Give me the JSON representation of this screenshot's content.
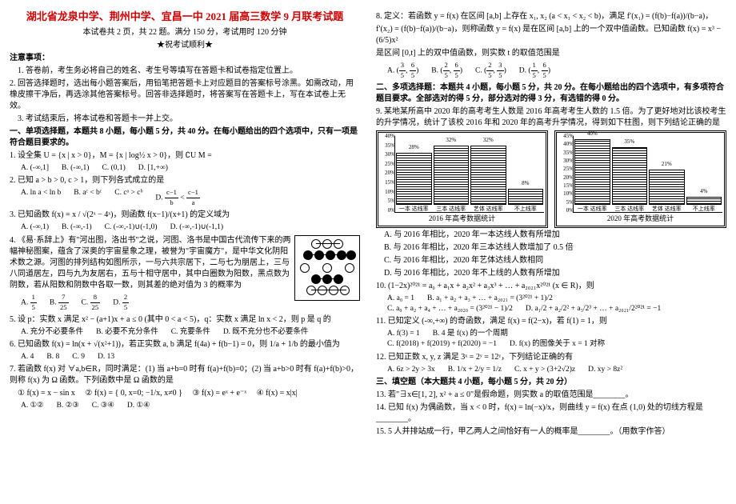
{
  "header": {
    "title": "湖北省龙泉中学、荆州中学、宜昌一中 2021 届高三数学 9 月联考试题",
    "subtitle": "本试卷共 2 页，共 22 题。满分 150 分，考试用时 120 分钟",
    "wish": "★祝考试顺利★"
  },
  "notes": {
    "head": "注意事项：",
    "n1": "1. 答卷前，考生务必将自己的姓名、考生号等填写在答题卡和试卷指定位置上。",
    "n2": "2. 回答选择题时，选出每小题答案后，用铅笔把答题卡上对应题目的答案标号涂黑。如需改动，用橡皮擦干净后，再选涂其他答案标号。回答非选择题时，将答案写在答题卡上，写在本试卷上无效。",
    "n3": "3. 考试结束后，将本试卷和答题卡一并上交。"
  },
  "sec1": {
    "head": "一、单项选择题，本题共 8 小题，每小题 5 分，共 40 分。在每小题给出的四个选项中，只有一项是符合题目要求的。"
  },
  "left": {
    "q1": "1. 设全集 U = {x | x > 0}，M = {x | log½ x > 0}，则 ∁U M =",
    "q1A": "A. (-∞,1]",
    "q1B": "B. (-∞,1)",
    "q1C": "C. (0,1)",
    "q1D": "D. [1,+∞)",
    "q2": "2. 已知 a > b > 0, c > 1，则下列各式成立的是",
    "q2A": "A. ln a < ln b",
    "q2B": "B. aᶜ < bᶜ",
    "q2C": "C. cᵃ > cᵇ",
    "q2D": "D. ",
    "q3": "3. 已知函数 f(x) = x / √(2ˣ − 4ˣ)，则函数 f(x−1)/(x+1) 的定义域为",
    "q3A": "A. (-∞,1)",
    "q3B": "B. (-∞,-1)",
    "q3C": "C. (-∞,-1)∪(-1,0)",
    "q3D": "D. (-∞,-1)∪(-1,1)",
    "q4": "4. 《易·系辞上》有\"河出图，洛出书\"之说，河图、洛书是中国古代流传下来的两幅神秘图案，蕴含了深奥的宇宙星象之理，被誉为\"宇宙魔方\"，是中华文化阴阳术数之源。河图的排列结构如图所示，一与六共宗居下，二与七为朋居上，三与八同道居左，四与九为友居右，五与十相守居中，其中白圈数为阳数，黑点数为阴数，若从阳数和阴数中各取一数，则其差的绝对值为 3 的概率为",
    "q4A": "A. 1/5",
    "q4B": "B. 7/25",
    "q4C": "C. 8/25",
    "q4D": "D. 2/5",
    "q5": "5. 设 p：实数 x 满足 x² − (a+1)x + a ≤ 0 (其中 0 < a < 5)，q：实数 x 满足 ln x < 2，则 p 是 q 的",
    "q5A": "A. 充分不必要条件",
    "q5B": "B. 必要不充分条件",
    "q5C": "C. 充要条件",
    "q5D": "D. 既不充分也不必要条件",
    "q6": "6. 已知函数 f(x) = ln(x + √(x²+1))，若正实数 a, b 满足 f(4a) + f(b−1) = 0，则 1/a + 1/b 的最小值为",
    "q6A": "A. 4",
    "q6B": "B. 8",
    "q6C": "C. 9",
    "q6D": "D. 13",
    "q7": "7. 若函数 f(x) 对 ∀a,b∈R，同时满足：(1) 当 a+b=0 时有 f(a)+f(b)=0；(2) 当 a+b>0 时有 f(a)+f(b)>0，则称 f(x) 为 Ω 函数。下列函数中是 Ω 函数的是",
    "q7_1": "① f(x) = x − sin x",
    "q7_2": "② f(x) = { 0, x=0; −1/x, x≠0 }",
    "q7_3": "③ f(x) = eˣ + e⁻ˣ",
    "q7_4": "④ f(x) = x|x|",
    "q7A": "A. ①②",
    "q7B": "B. ②③",
    "q7C": "C. ③④",
    "q7D": "D. ①④"
  },
  "right": {
    "q8": "8. 定义：若函数 y = f(x) 在区间 [a,b] 上存在 x₁, x₂ (a < x₁ < x₂ < b)，满足 f′(x₁) = (f(b)−f(a))/(b−a)，",
    "q8b": "f′(x₂) = (f(b)−f(a))/(b−a)，则称函数 y = f(x) 是在区间 [a,b] 上的一个双中值函数。已知函数 f(x) = x³ − (6/5)x²",
    "q8c": "是区间 [0,t] 上的双中值函数，则实数 t 的取值范围是",
    "q8A": "A. (3/5, 6/5)",
    "q8B": "B. (2/5, 6/5)",
    "q8C": "C. (2/5, 3/5)",
    "q8D": "D. (1/5, 6/5)",
    "sec2": "二、多项选择题：本题共 4 小题，每小题 5 分，共 20 分。在每小题给出的四个选项中，有多项符合题目要求。全部选对的得 5 分，部分选对的得 3 分，有选错的得 0 分。",
    "q9": "9. 某地某所高中 2020 年的高考考生人数是 2016 年高考考生人数的 1.5 倍。为了更好地对比该校考生的升学情况，统计了该校 2016 年和 2020 年的高考升学情况，得到如下柱图，则下列结论正确的是",
    "chart2016": {
      "title": "2016 年高考数据统计",
      "ylim": 40,
      "ystep": 5,
      "bars": [
        {
          "label": "一本\n达线率",
          "value": 28
        },
        {
          "label": "三本\n达线率",
          "value": 32
        },
        {
          "label": "艺体\n达线率",
          "value": 32
        },
        {
          "label": "不上线率",
          "value": 8
        }
      ]
    },
    "chart2020": {
      "title": "2020 年高考数据统计",
      "ylim": 45,
      "ystep": 5,
      "bars": [
        {
          "label": "一本\n达线率",
          "value": 40
        },
        {
          "label": "三本\n达线率",
          "value": 35
        },
        {
          "label": "艺体\n达线率",
          "value": 21
        },
        {
          "label": "不上线率",
          "value": 4
        }
      ]
    },
    "q9A": "A. 与 2016 年相比，2020 年一本达线人数有所增加",
    "q9B": "B. 与 2016 年相比，2020 年三本达线人数增加了 0.5 倍",
    "q9C": "C. 与 2016 年相比，2020 年艺体达线人数相同",
    "q9D": "D. 与 2016 年相比，2020 年不上线的人数有所增加",
    "q10": "10. (1−2x)²⁰²¹ = a₀ + a₁x + a₂x² + a₃x³ + … + a₂₀₂₁x²⁰²¹ (x ∈ R)，则",
    "q10A": "A. a₀ = 1",
    "q10B": "B. a₁ + a₂ + a₃ + … + a₂₀₂₁ = (3²⁰²¹ + 1)/2",
    "q10C": "C. a₀ + a₂ + a₄ + … + a₂₀₂₀ = (3²⁰²¹ − 1)/2",
    "q10D": "D. a₁/2 + a₂/2² + a₃/2³ + … + a₂₀₂₁/2²⁰²¹ = −1",
    "q11": "11. 已知定义 (-∞,+∞) 的奇函数，满足 f(x) = f(2−x)，若 f(1) = 1，则",
    "q11A": "A. f(3) = 1",
    "q11B": "B. 4 是 f(x) 的一个周期",
    "q11C": "C. f(2018) + f(2019) + f(2020) = −1",
    "q11D": "D. f(x) 的图像关于 x = 1 对称",
    "q12": "12. 已知正数 x, y, z 满足 3ˣ = 2ʸ = 12ᶻ，下列结论正确的有",
    "q12A": "A. 6z > 2y > 3x",
    "q12B": "B. 1/x + 2/y = 1/z",
    "q12C": "C. x + y > (3+2√2)z",
    "q12D": "D. xy > 8z²",
    "sec3": "三、填空题（本大题共 4 小题，每小题 5 分，共 20 分）",
    "q13": "13. 若\"∃x∈[1, 2], x² + a ≤ 0\"是假命题，则实数 a 的取值范围是________。",
    "q14": "14. 已知 f(x) 为偶函数，当 x < 0 时，f(x) = ln(−x)/x，则曲线 y = f(x) 在点 (1,0) 处的切线方程是________。",
    "q15": "15. 5 人并排站成一行，甲乙两人之间恰好有一人的概率是________。（用数字作答）"
  }
}
